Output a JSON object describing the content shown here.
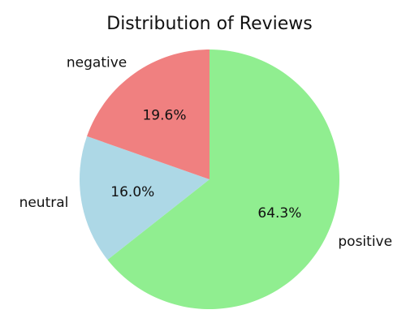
{
  "chart_data": {
    "type": "pie",
    "title": "Distribution of Reviews",
    "slices": [
      {
        "label": "positive",
        "value": 64.3,
        "pct_label": "64.3%",
        "color": "#90ee90"
      },
      {
        "label": "neutral",
        "value": 16.0,
        "pct_label": "16.0%",
        "color": "#add8e6"
      },
      {
        "label": "negative",
        "value": 19.6,
        "pct_label": "19.6%",
        "color": "#f08080"
      }
    ],
    "start_angle_deg": 90,
    "direction": "clockwise",
    "legend": "none"
  }
}
